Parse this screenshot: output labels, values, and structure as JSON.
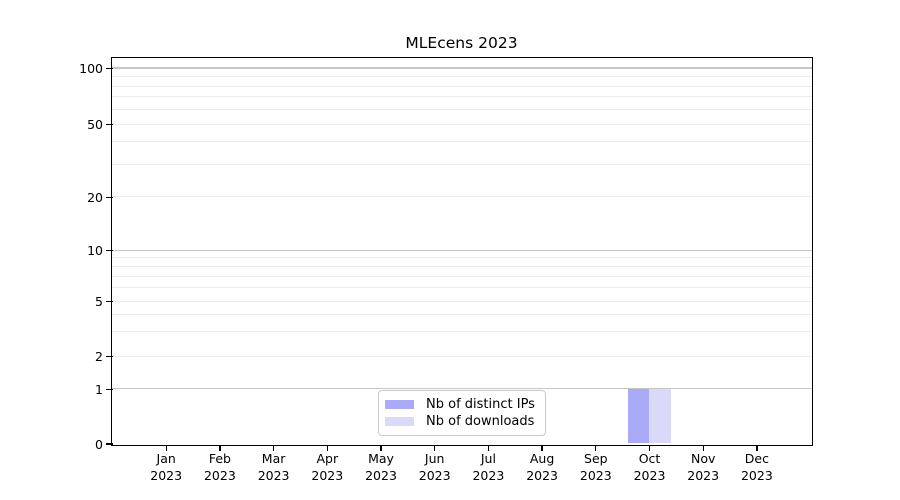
{
  "chart_data": {
    "type": "bar",
    "title": "MLEcens 2023",
    "categories": [
      "Jan 2023",
      "Feb 2023",
      "Mar 2023",
      "Apr 2023",
      "May 2023",
      "Jun 2023",
      "Jul 2023",
      "Aug 2023",
      "Sep 2023",
      "Oct 2023",
      "Nov 2023",
      "Dec 2023"
    ],
    "series": [
      {
        "name": "Nb of distinct IPs",
        "color": "#aaaaf8",
        "values": [
          0,
          0,
          0,
          0,
          0,
          0,
          0,
          0,
          0,
          1,
          0,
          0
        ]
      },
      {
        "name": "Nb of downloads",
        "color": "#d9d9fa",
        "values": [
          0,
          0,
          0,
          0,
          0,
          0,
          0,
          0,
          0,
          1,
          0,
          0
        ]
      }
    ],
    "y_axis": {
      "scale": "symlog",
      "tick_values": [
        0,
        1,
        2,
        5,
        10,
        20,
        50,
        100
      ],
      "tick_labels": [
        "0",
        "1",
        "2",
        "5",
        "10",
        "20",
        "50",
        "100"
      ],
      "major_gridlines": [
        1,
        10,
        100
      ],
      "minor_gridlines": [
        2,
        3,
        4,
        5,
        6,
        7,
        8,
        9,
        20,
        30,
        40,
        50,
        60,
        70,
        80,
        90
      ]
    },
    "legend": {
      "position": "lower center",
      "entries": [
        "Nb of distinct IPs",
        "Nb of downloads"
      ]
    },
    "grid": "horizontal",
    "colors": {
      "grid_major": "#c6c6c6",
      "grid_minor": "#ebebeb",
      "axis": "#000000",
      "background": "#ffffff",
      "legend_border": "#c9c9c9"
    }
  }
}
